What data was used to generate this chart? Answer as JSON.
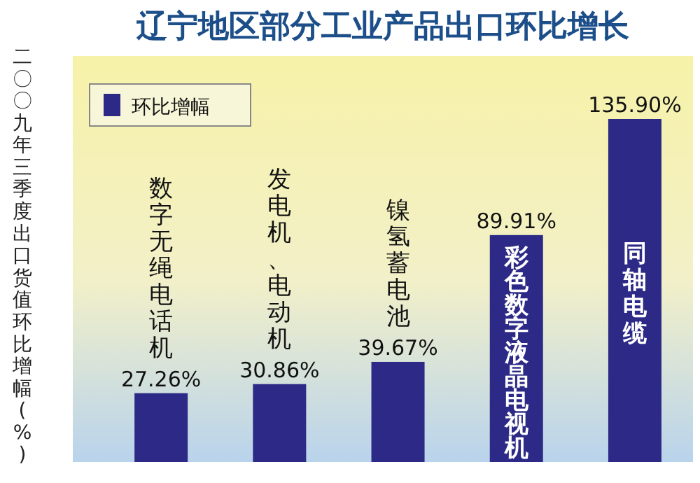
{
  "chart_data": {
    "type": "bar",
    "title": "辽宁地区部分工业产品出口环比增长",
    "ylabel": "二〇〇九年三季度出口货值环比增幅(%)",
    "categories": [
      "数字无绳电话机",
      "发电机、电动机",
      "镍氢蓄电池",
      "彩色数字液晶电视机",
      "同轴电缆"
    ],
    "series": [
      {
        "name": "环比增幅",
        "color": "#2c2a86",
        "values": [
          27.26,
          30.86,
          39.67,
          89.91,
          135.9
        ],
        "value_labels": [
          "27.26%",
          "30.86%",
          "39.67%",
          "89.91%",
          "135.90%"
        ]
      }
    ],
    "legend": "top left"
  }
}
